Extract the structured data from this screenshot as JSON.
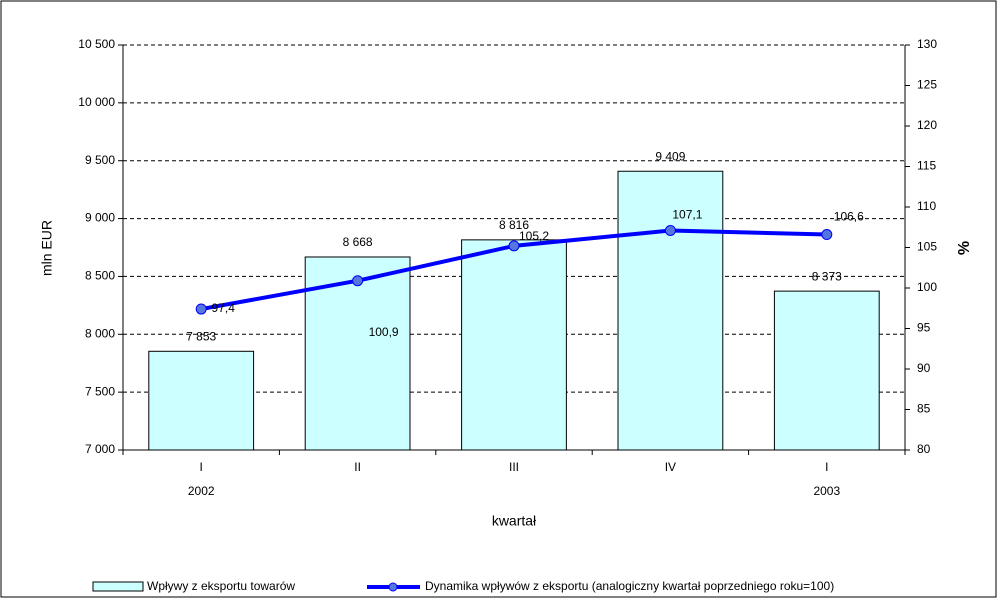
{
  "chart_data": {
    "type": "bar-line",
    "categories": [
      "I",
      "II",
      "III",
      "IV",
      "I"
    ],
    "years": [
      "2002",
      null,
      null,
      null,
      "2003"
    ],
    "x_label": "kwartał",
    "y_label": "mln EUR",
    "y2_label": "%",
    "series": [
      {
        "name": "Wpływy z eksportu towarów",
        "type": "bar",
        "color": "#ccffff",
        "values": [
          7853,
          8668,
          8816,
          9409,
          8373
        ],
        "value_labels": [
          "7 853",
          "8 668",
          "8 816",
          "9 409",
          "8 373"
        ]
      },
      {
        "name": "Dynamika wpływów z eksportu (analogiczny kwartał poprzedniego roku=100)",
        "type": "line",
        "axis": "y2",
        "color": "#0000ff",
        "values": [
          97.4,
          100.9,
          105.2,
          107.1,
          106.6
        ],
        "value_labels": [
          "97,4",
          "100,9",
          "105,2",
          "107,1",
          "106,6"
        ]
      }
    ],
    "ylim": [
      7000,
      10500
    ],
    "yticks": [
      {
        "value": 7000,
        "label": "7 000"
      },
      {
        "value": 7500,
        "label": "7 500"
      },
      {
        "value": 8000,
        "label": "8 000"
      },
      {
        "value": 8500,
        "label": "8 500"
      },
      {
        "value": 9000,
        "label": "9 000"
      },
      {
        "value": 9500,
        "label": "9 500"
      },
      {
        "value": 10000,
        "label": "10 000"
      },
      {
        "value": 10500,
        "label": "10 500"
      }
    ],
    "y2lim": [
      80,
      130
    ],
    "y2ticks": [
      80,
      85,
      90,
      95,
      100,
      105,
      110,
      115,
      120,
      125,
      130
    ],
    "grid": true,
    "legend": "bottom"
  }
}
